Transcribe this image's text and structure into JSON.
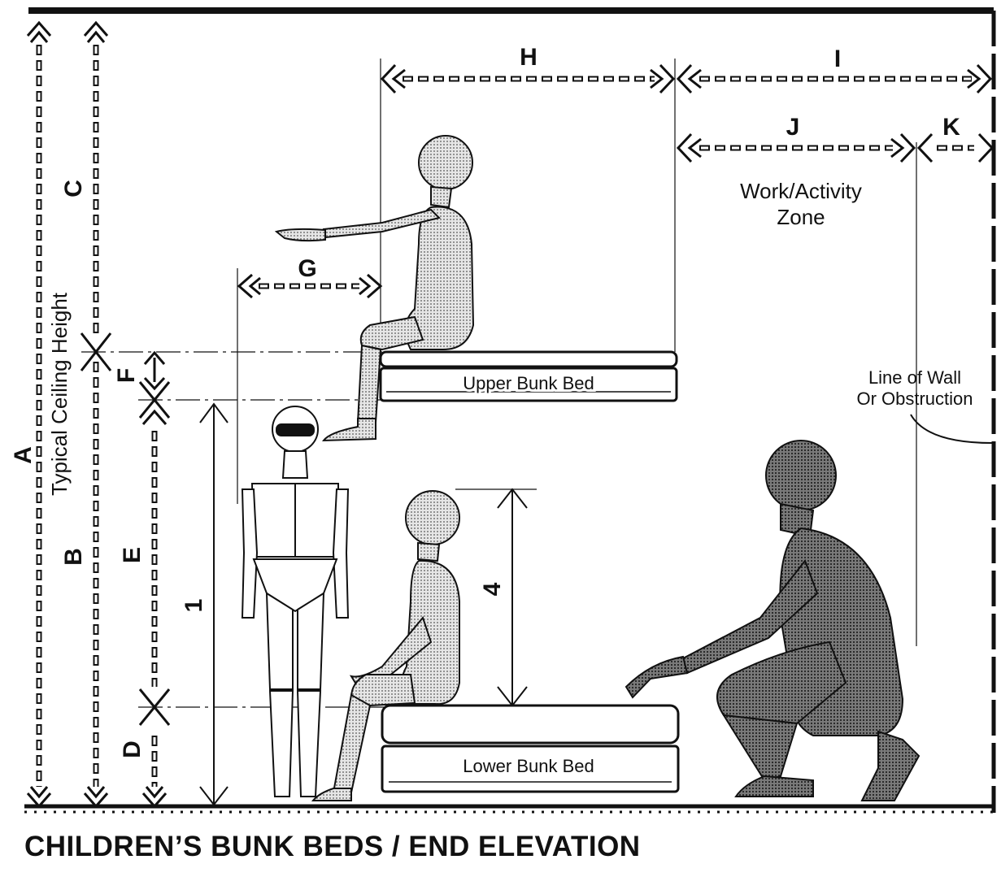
{
  "title": "CHILDREN’S BUNK BEDS / END ELEVATION",
  "dimension_letters": {
    "a": "A",
    "b": "B",
    "c": "C",
    "d": "D",
    "e": "E",
    "f": "F",
    "g": "G",
    "h": "H",
    "i": "I",
    "j": "J",
    "k": "K"
  },
  "dimension_numbers": {
    "n1": "1",
    "n4": "4"
  },
  "labels": {
    "ceiling": "Typical Ceiling Height",
    "zone_line1": "Work/Activity",
    "zone_line2": "Zone",
    "wall_line1": "Line of Wall",
    "wall_line2": "Or Obstruction",
    "upper_bed": "Upper Bunk Bed",
    "lower_bed": "Lower Bunk Bed"
  },
  "colors": {
    "ink": "#111111",
    "figure_light": "#d6d6d6",
    "figure_dark": "#6e6e6e"
  }
}
